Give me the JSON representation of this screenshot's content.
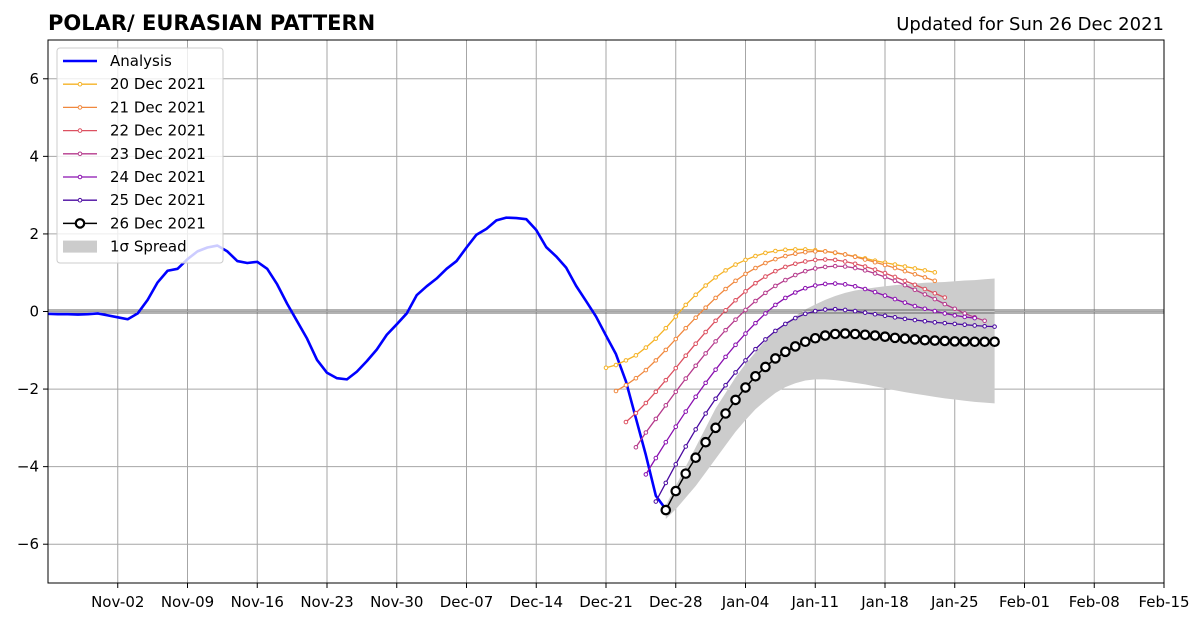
{
  "chart_data": {
    "type": "line",
    "title": "POLAR/ EURASIAN  PATTERN",
    "subtitle": "Updated for Sun 26 Dec 2021",
    "xlabel": "",
    "ylabel": "",
    "ylim": [
      -7,
      7
    ],
    "xlim": [
      "2021-10-26",
      "2022-02-15"
    ],
    "yticks": [
      -6,
      -4,
      -2,
      0,
      2,
      4,
      6
    ],
    "ytick_labels": [
      "−6",
      "−4",
      "−2",
      "0",
      "2",
      "4",
      "6"
    ],
    "xticks": [
      "2021-11-02",
      "2021-11-09",
      "2021-11-16",
      "2021-11-23",
      "2021-11-30",
      "2021-12-07",
      "2021-12-14",
      "2021-12-21",
      "2021-12-28",
      "2022-01-04",
      "2022-01-11",
      "2022-01-18",
      "2022-01-25",
      "2022-02-01",
      "2022-02-08",
      "2022-02-15"
    ],
    "xtick_labels": [
      "Nov-02",
      "Nov-09",
      "Nov-16",
      "Nov-23",
      "Nov-30",
      "Dec-07",
      "Dec-14",
      "Dec-21",
      "Dec-28",
      "Jan-04",
      "Jan-11",
      "Jan-18",
      "Jan-25",
      "Feb-01",
      "Feb-08",
      "Feb-15"
    ],
    "grid": true,
    "legend_position": "top-left",
    "analysis": {
      "name": "Analysis",
      "color": "#0000ff",
      "start": "2021-10-26",
      "values": [
        -0.06,
        -0.07,
        -0.07,
        -0.08,
        -0.07,
        -0.05,
        -0.1,
        -0.15,
        -0.2,
        -0.05,
        0.3,
        0.75,
        1.05,
        1.1,
        1.35,
        1.55,
        1.65,
        1.7,
        1.55,
        1.3,
        1.25,
        1.28,
        1.1,
        0.7,
        0.2,
        -0.25,
        -0.7,
        -1.25,
        -1.58,
        -1.72,
        -1.75,
        -1.55,
        -1.28,
        -0.98,
        -0.6,
        -0.33,
        -0.05,
        0.42,
        0.65,
        0.85,
        1.1,
        1.3,
        1.65,
        1.98,
        2.13,
        2.35,
        2.42,
        2.41,
        2.38,
        2.1,
        1.66,
        1.42,
        1.13,
        0.66,
        0.27,
        -0.13,
        -0.62,
        -1.1,
        -1.8,
        -2.75,
        -3.7,
        -4.75,
        -5.1
      ]
    },
    "series": [
      {
        "name": "20 Dec 2021",
        "color": "#f5b225",
        "start": "2021-12-21",
        "values": [
          -1.45,
          -1.38,
          -1.26,
          -1.13,
          -0.93,
          -0.7,
          -0.43,
          -0.13,
          0.17,
          0.43,
          0.67,
          0.88,
          1.06,
          1.21,
          1.33,
          1.43,
          1.51,
          1.56,
          1.59,
          1.6,
          1.6,
          1.58,
          1.55,
          1.51,
          1.47,
          1.42,
          1.37,
          1.31,
          1.26,
          1.21,
          1.16,
          1.11,
          1.06,
          1.01
        ]
      },
      {
        "name": "21 Dec 2021",
        "color": "#f0883e",
        "start": "2021-12-22",
        "values": [
          -2.05,
          -1.9,
          -1.72,
          -1.51,
          -1.26,
          -0.99,
          -0.71,
          -0.43,
          -0.16,
          0.1,
          0.35,
          0.58,
          0.79,
          0.97,
          1.12,
          1.25,
          1.35,
          1.43,
          1.49,
          1.53,
          1.55,
          1.55,
          1.52,
          1.47,
          1.41,
          1.34,
          1.27,
          1.2,
          1.12,
          1.04,
          0.96,
          0.88,
          0.79
        ]
      },
      {
        "name": "22 Dec 2021",
        "color": "#dc5060",
        "start": "2021-12-23",
        "values": [
          -2.85,
          -2.62,
          -2.36,
          -2.07,
          -1.77,
          -1.46,
          -1.14,
          -0.83,
          -0.53,
          -0.24,
          0.03,
          0.29,
          0.52,
          0.73,
          0.9,
          1.04,
          1.15,
          1.23,
          1.29,
          1.33,
          1.34,
          1.33,
          1.29,
          1.23,
          1.16,
          1.08,
          0.99,
          0.89,
          0.79,
          0.69,
          0.58,
          0.47,
          0.36
        ]
      },
      {
        "name": "23 Dec 2021",
        "color": "#b53a8c",
        "start": "2021-12-24",
        "values": [
          -3.5,
          -3.12,
          -2.77,
          -2.42,
          -2.07,
          -1.73,
          -1.4,
          -1.08,
          -0.77,
          -0.48,
          -0.21,
          0.04,
          0.27,
          0.48,
          0.66,
          0.81,
          0.94,
          1.04,
          1.11,
          1.15,
          1.17,
          1.16,
          1.12,
          1.06,
          0.98,
          0.89,
          0.79,
          0.68,
          0.56,
          0.44,
          0.32,
          0.19,
          0.07,
          -0.05,
          -0.15,
          -0.24
        ]
      },
      {
        "name": "24 Dec 2021",
        "color": "#8a10b0",
        "start": "2021-12-25",
        "values": [
          -4.2,
          -3.78,
          -3.37,
          -2.97,
          -2.58,
          -2.2,
          -1.84,
          -1.5,
          -1.17,
          -0.86,
          -0.57,
          -0.3,
          -0.05,
          0.17,
          0.35,
          0.49,
          0.6,
          0.67,
          0.71,
          0.72,
          0.7,
          0.65,
          0.58,
          0.5,
          0.41,
          0.32,
          0.23,
          0.14,
          0.07,
          0.01,
          -0.05,
          -0.1,
          -0.14,
          -0.17
        ]
      },
      {
        "name": "25 Dec 2021",
        "color": "#4a0aa0",
        "start": "2021-12-26",
        "values": [
          -4.9,
          -4.42,
          -3.94,
          -3.48,
          -3.04,
          -2.63,
          -2.25,
          -1.9,
          -1.57,
          -1.26,
          -0.97,
          -0.72,
          -0.5,
          -0.32,
          -0.17,
          -0.06,
          0.01,
          0.05,
          0.06,
          0.04,
          0.01,
          -0.03,
          -0.07,
          -0.11,
          -0.15,
          -0.19,
          -0.22,
          -0.25,
          -0.28,
          -0.3,
          -0.32,
          -0.34,
          -0.36,
          -0.38,
          -0.39
        ]
      },
      {
        "name": "26 Dec 2021",
        "color": "#000000",
        "start": "2021-12-27",
        "values": [
          -5.12,
          -4.63,
          -4.18,
          -3.77,
          -3.37,
          -3.0,
          -2.63,
          -2.28,
          -1.96,
          -1.67,
          -1.43,
          -1.21,
          -1.04,
          -0.9,
          -0.78,
          -0.69,
          -0.62,
          -0.58,
          -0.57,
          -0.58,
          -0.6,
          -0.62,
          -0.65,
          -0.68,
          -0.7,
          -0.72,
          -0.74,
          -0.75,
          -0.76,
          -0.77,
          -0.77,
          -0.78,
          -0.78,
          -0.78
        ]
      }
    ],
    "spread": {
      "name": "1σ Spread",
      "color": "#cccccc",
      "start": "2021-12-27",
      "upper": [
        -5.0,
        -4.5,
        -4.0,
        -3.5,
        -3.0,
        -2.5,
        -2.1,
        -1.7,
        -1.35,
        -1.05,
        -0.75,
        -0.5,
        -0.3,
        -0.12,
        0.05,
        0.18,
        0.3,
        0.4,
        0.48,
        0.54,
        0.58,
        0.62,
        0.65,
        0.68,
        0.7,
        0.72,
        0.74,
        0.75,
        0.76,
        0.78,
        0.8,
        0.81,
        0.83,
        0.85
      ],
      "lower": [
        -5.35,
        -5.1,
        -4.8,
        -4.5,
        -4.15,
        -3.8,
        -3.45,
        -3.1,
        -2.8,
        -2.52,
        -2.3,
        -2.1,
        -1.95,
        -1.85,
        -1.78,
        -1.75,
        -1.75,
        -1.77,
        -1.8,
        -1.84,
        -1.88,
        -1.93,
        -1.98,
        -2.03,
        -2.08,
        -2.12,
        -2.16,
        -2.2,
        -2.24,
        -2.27,
        -2.3,
        -2.33,
        -2.35,
        -2.37
      ]
    }
  }
}
